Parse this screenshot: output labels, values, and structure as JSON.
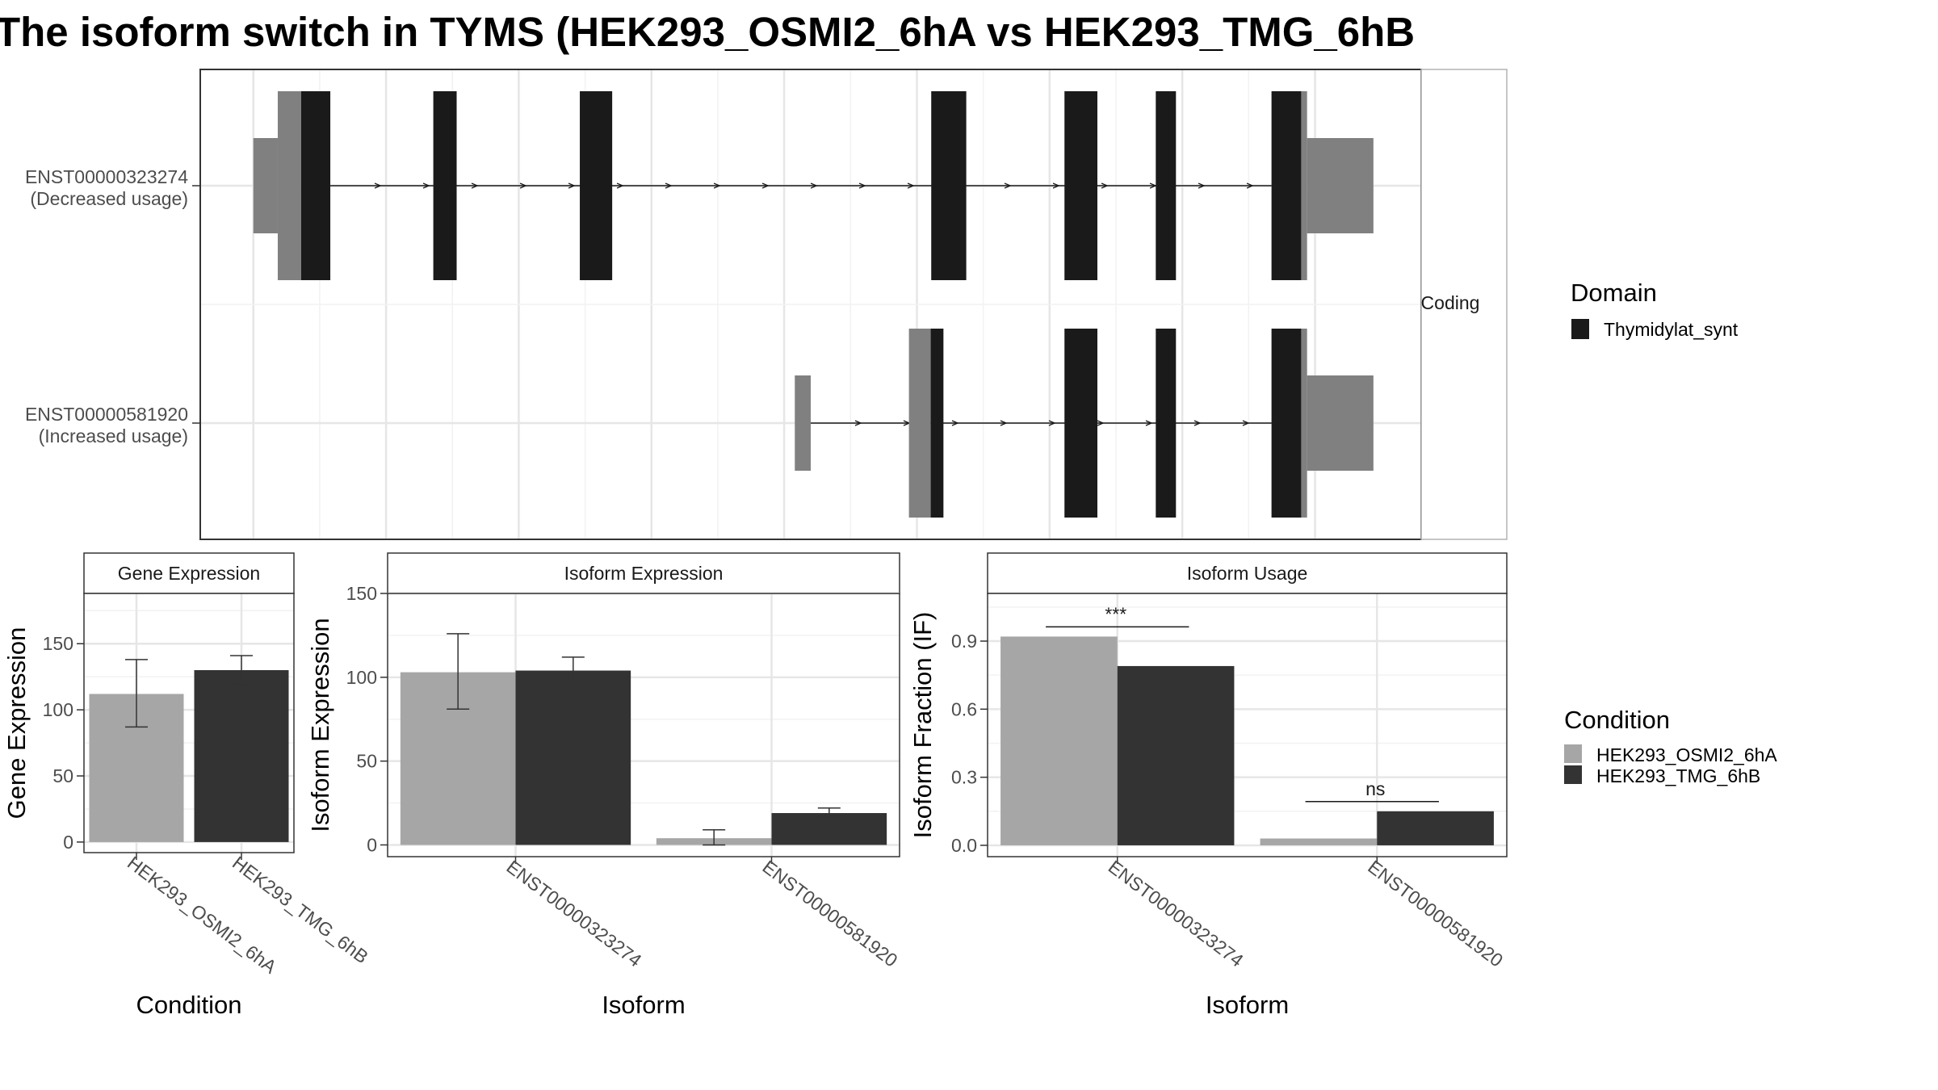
{
  "title": "The isoform switch in TYMS (HEK293_OSMI2_6hA vs HEK293_TMG_6hB",
  "colors": {
    "cond_a": "#a6a6a6",
    "cond_b": "#333333",
    "exon_utr": "#808080",
    "exon_cds": "#1a1a1a",
    "grid_major": "#e6e6e6",
    "grid_minor": "#f2f2f2",
    "strip_bg": "#ffffff",
    "panel_border": "#333333"
  },
  "transcript_panel": {
    "strip_label": "Coding",
    "transcripts": [
      {
        "name": "ENST00000323274",
        "usage": "(Decreased usage)",
        "exons": [
          [
            0.0,
            0.046,
            "utr_small"
          ],
          [
            0.046,
            0.09,
            "utr_large"
          ],
          [
            0.09,
            0.145,
            "cds"
          ],
          [
            0.339,
            0.383,
            "cds"
          ],
          [
            0.615,
            0.676,
            "cds"
          ],
          [
            1.277,
            1.343,
            "cds"
          ],
          [
            1.528,
            1.59,
            "cds"
          ],
          [
            1.7,
            1.738,
            "cds"
          ],
          [
            1.918,
            1.974,
            "cds"
          ],
          [
            1.974,
            1.985,
            "utr_large"
          ],
          [
            1.985,
            2.11,
            "utr_small"
          ]
        ],
        "intron": [
          0.145,
          1.918
        ]
      },
      {
        "name": "ENST00000581920",
        "usage": "(Increased usage)",
        "exons": [
          [
            1.02,
            1.05,
            "utr_small"
          ],
          [
            1.235,
            1.276,
            "utr_large"
          ],
          [
            1.276,
            1.3,
            "cds"
          ],
          [
            1.528,
            1.59,
            "cds"
          ],
          [
            1.7,
            1.738,
            "cds"
          ],
          [
            1.918,
            1.974,
            "cds"
          ],
          [
            1.974,
            1.985,
            "utr_large"
          ],
          [
            1.985,
            2.11,
            "utr_small"
          ]
        ],
        "intron": [
          1.05,
          1.918
        ]
      }
    ],
    "x_range": [
      -0.1,
      2.2
    ],
    "x_major_ticks": [
      0.0,
      0.25,
      0.5,
      0.75,
      1.0,
      1.25,
      1.5,
      1.75,
      2.0
    ],
    "domain_legend_title": "Domain",
    "domain_legend_items": [
      {
        "label": "Thymidylat_synt",
        "color": "#1a1a1a"
      }
    ]
  },
  "chart_data": [
    {
      "type": "bar",
      "title": "Gene Expression",
      "xlabel": "Condition",
      "ylabel": "Gene Expression",
      "categories": [
        "HEK293_OSMI2_6hA",
        "HEK293_TMG_6hB"
      ],
      "series": [
        {
          "name": "HEK293_OSMI2_6hA",
          "values": [
            112,
            null
          ]
        },
        {
          "name": "HEK293_TMG_6hB",
          "values": [
            null,
            130
          ]
        }
      ],
      "errors": [
        [
          87,
          138
        ],
        [
          119,
          141
        ]
      ],
      "ylim": [
        -8,
        188
      ],
      "yticks": [
        0,
        50,
        100,
        150
      ],
      "grid": true
    },
    {
      "type": "bar",
      "title": "Isoform Expression",
      "xlabel": "Isoform",
      "ylabel": "Isoform Expression",
      "categories": [
        "ENST00000323274",
        "ENST00000581920"
      ],
      "series": [
        {
          "name": "HEK293_OSMI2_6hA",
          "values": [
            103,
            4
          ]
        },
        {
          "name": "HEK293_TMG_6hB",
          "values": [
            104,
            19
          ]
        }
      ],
      "errors": {
        "HEK293_OSMI2_6hA": [
          [
            81,
            126
          ],
          [
            0,
            9
          ]
        ],
        "HEK293_TMG_6hB": [
          [
            95,
            112
          ],
          [
            17,
            22
          ]
        ]
      },
      "ylim": [
        -7,
        150
      ],
      "yticks": [
        0,
        50,
        100,
        150
      ],
      "grid": true
    },
    {
      "type": "bar",
      "title": "Isoform Usage",
      "xlabel": "Isoform",
      "ylabel": "Isoform Fraction (IF)",
      "categories": [
        "ENST00000323274",
        "ENST00000581920"
      ],
      "series": [
        {
          "name": "HEK293_OSMI2_6hA",
          "values": [
            0.92,
            0.03
          ]
        },
        {
          "name": "HEK293_TMG_6hB",
          "values": [
            0.79,
            0.15
          ]
        }
      ],
      "significance": [
        "***",
        "ns"
      ],
      "ylim": [
        -0.05,
        1.11
      ],
      "yticks": [
        0.0,
        0.3,
        0.6,
        0.9
      ],
      "ytick_labels": [
        "0.0",
        "0.3",
        "0.6",
        "0.9"
      ],
      "grid": true
    }
  ],
  "condition_legend": {
    "title": "Condition",
    "items": [
      {
        "label": "HEK293_OSMI2_6hA",
        "color": "#a6a6a6"
      },
      {
        "label": "HEK293_TMG_6hB",
        "color": "#333333"
      }
    ]
  }
}
